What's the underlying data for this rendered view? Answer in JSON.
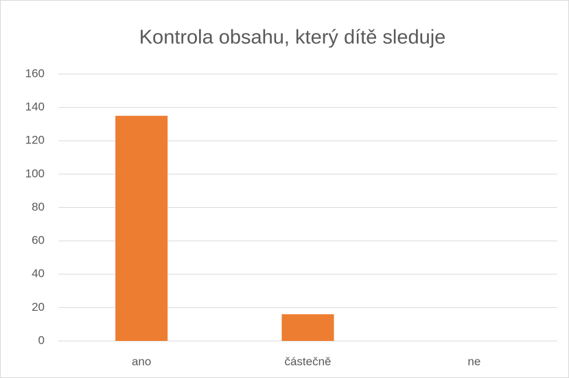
{
  "chart_data": {
    "type": "bar",
    "title": "Kontrola obsahu, který dítě sleduje",
    "categories": [
      "ano",
      "částečně",
      "ne"
    ],
    "values": [
      135,
      16,
      0
    ],
    "color": "#ed7d31",
    "ylim": [
      0,
      160
    ],
    "yticks": [
      0,
      20,
      40,
      60,
      80,
      100,
      120,
      140,
      160
    ],
    "grid": true
  }
}
